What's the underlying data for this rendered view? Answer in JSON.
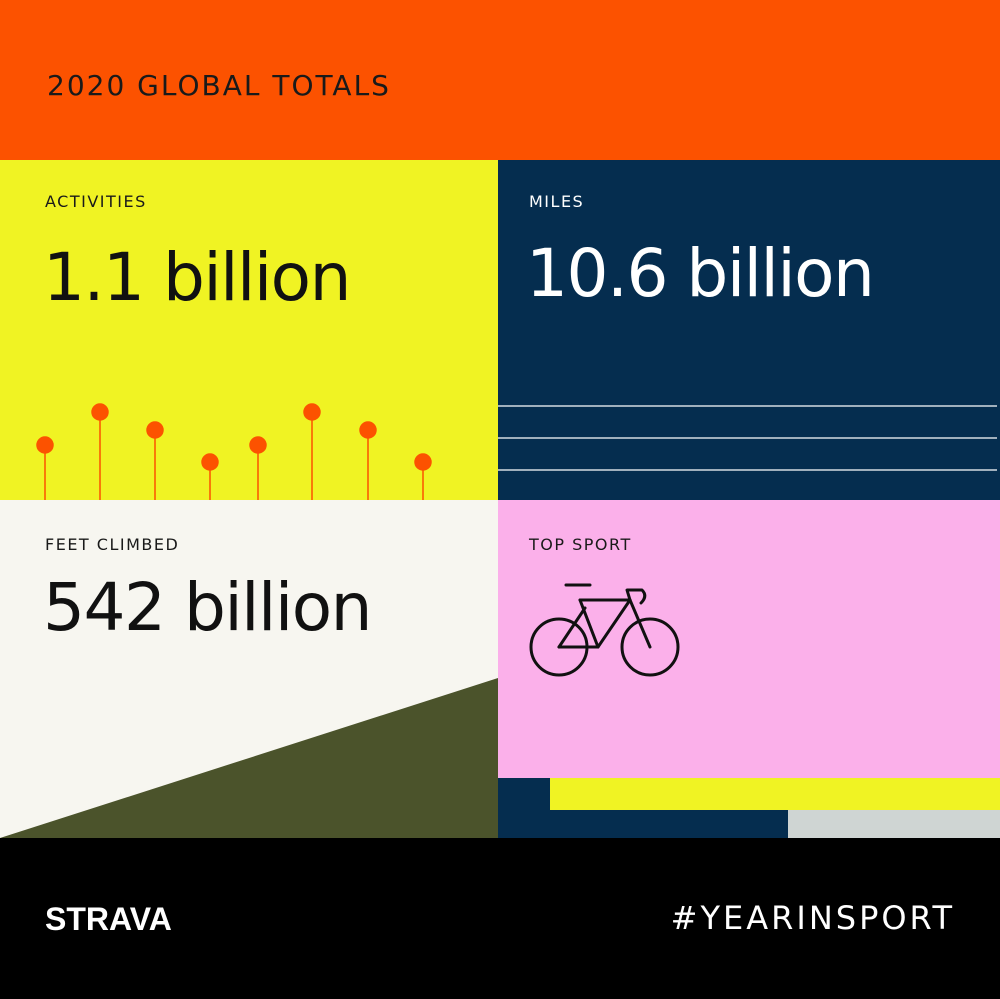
{
  "header": {
    "title": "2020 GLOBAL TOTALS"
  },
  "panels": [
    {
      "label": "ACTIVITIES",
      "value": "1.1 billion"
    },
    {
      "label": "MILES",
      "value": "10.6 billion"
    },
    {
      "label": "FEET CLIMBED",
      "value": "542 billion"
    },
    {
      "label": "TOP SPORT"
    }
  ],
  "footer": {
    "brand": "STRAVA",
    "hashtag": "#YEARINSPORT"
  }
}
